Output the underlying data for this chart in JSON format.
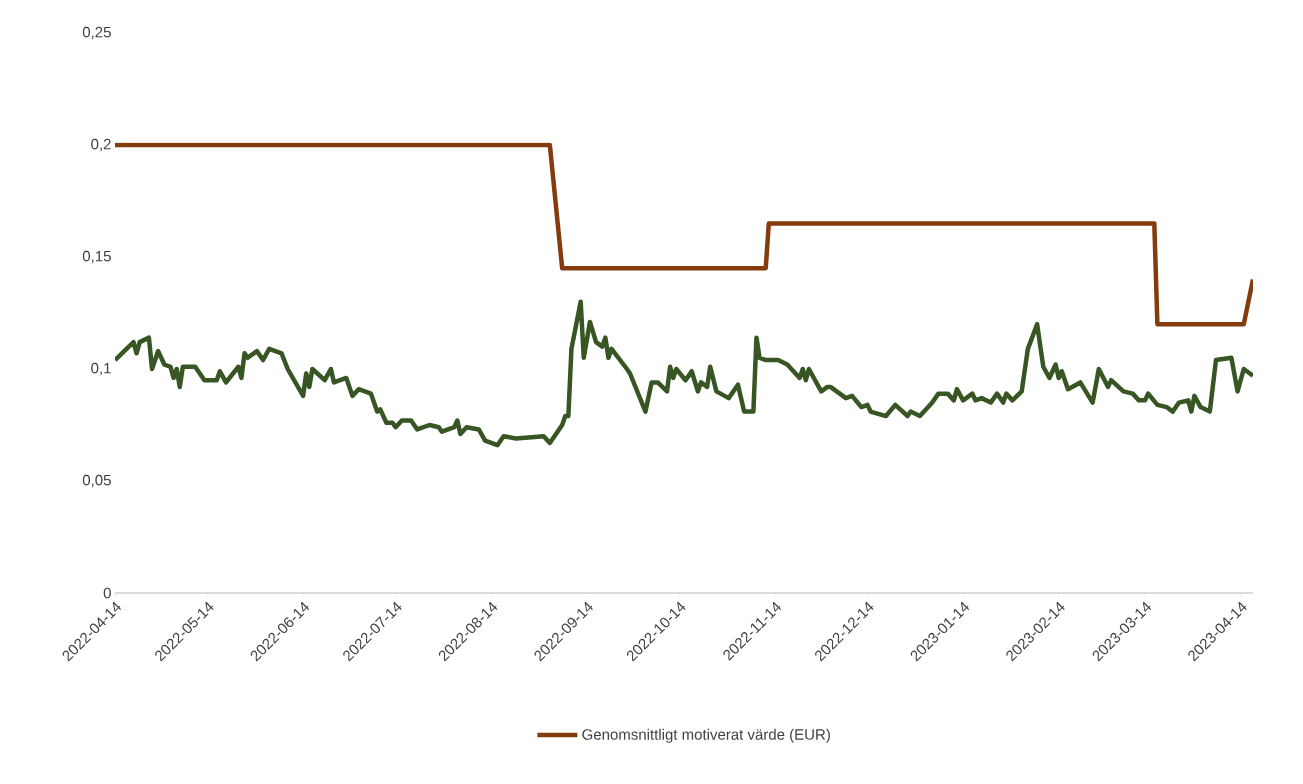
{
  "chart_data": {
    "type": "line",
    "xlim": [
      "2022-04-14",
      "2023-04-18"
    ],
    "ylim": [
      0,
      0.25
    ],
    "xticks": [
      "2022-04-14",
      "2022-05-14",
      "2022-06-14",
      "2022-07-14",
      "2022-08-14",
      "2022-09-14",
      "2022-10-14",
      "2022-11-14",
      "2022-12-14",
      "2023-01-14",
      "2023-02-14",
      "2023-03-14",
      "2023-04-14"
    ],
    "yticks": [
      {
        "value": 0,
        "label": "0"
      },
      {
        "value": 0.05,
        "label": "0,05"
      },
      {
        "value": 0.1,
        "label": "0,1"
      },
      {
        "value": 0.15,
        "label": "0,15"
      },
      {
        "value": 0.2,
        "label": "0,2"
      },
      {
        "value": 0.25,
        "label": "0,25"
      }
    ],
    "grid": false,
    "legend": "bottom",
    "marker": "none",
    "line_style": "solid",
    "series": [
      {
        "color": "#375623",
        "x": [
          "2022-04-14",
          "2022-04-20",
          "2022-04-21",
          "2022-04-22",
          "2022-04-25",
          "2022-04-26",
          "2022-04-28",
          "2022-04-30",
          "2022-05-02",
          "2022-05-03",
          "2022-05-04",
          "2022-05-05",
          "2022-05-06",
          "2022-05-10",
          "2022-05-13",
          "2022-05-17",
          "2022-05-18",
          "2022-05-20",
          "2022-05-24",
          "2022-05-25",
          "2022-05-26",
          "2022-05-27",
          "2022-05-30",
          "2022-06-01",
          "2022-06-03",
          "2022-06-07",
          "2022-06-09",
          "2022-06-14",
          "2022-06-15",
          "2022-06-16",
          "2022-06-17",
          "2022-06-21",
          "2022-06-23",
          "2022-06-24",
          "2022-06-28",
          "2022-06-30",
          "2022-07-02",
          "2022-07-06",
          "2022-07-08",
          "2022-07-09",
          "2022-07-11",
          "2022-07-13",
          "2022-07-14",
          "2022-07-16",
          "2022-07-19",
          "2022-07-21",
          "2022-07-25",
          "2022-07-28",
          "2022-07-29",
          "2022-08-02",
          "2022-08-03",
          "2022-08-04",
          "2022-08-06",
          "2022-08-10",
          "2022-08-12",
          "2022-08-16",
          "2022-08-18",
          "2022-08-22",
          "2022-08-31",
          "2022-09-02",
          "2022-09-06",
          "2022-09-07",
          "2022-09-08",
          "2022-09-09",
          "2022-09-12",
          "2022-09-13",
          "2022-09-15",
          "2022-09-17",
          "2022-09-19",
          "2022-09-20",
          "2022-09-21",
          "2022-09-22",
          "2022-09-27",
          "2022-09-28",
          "2022-10-03",
          "2022-10-05",
          "2022-10-07",
          "2022-10-10",
          "2022-10-11",
          "2022-10-12",
          "2022-10-13",
          "2022-10-16",
          "2022-10-18",
          "2022-10-20",
          "2022-10-21",
          "2022-10-23",
          "2022-10-24",
          "2022-10-26",
          "2022-10-30",
          "2022-11-02",
          "2022-11-04",
          "2022-11-07",
          "2022-11-08",
          "2022-11-09",
          "2022-11-11",
          "2022-11-15",
          "2022-11-18",
          "2022-11-22",
          "2022-11-23",
          "2022-11-24",
          "2022-11-25",
          "2022-11-29",
          "2022-12-01",
          "2022-12-02",
          "2022-12-07",
          "2022-12-09",
          "2022-12-12",
          "2022-12-14",
          "2022-12-15",
          "2022-12-20",
          "2022-12-23",
          "2022-12-27",
          "2022-12-28",
          "2022-12-31",
          "2023-01-04",
          "2023-01-06",
          "2023-01-09",
          "2023-01-11",
          "2023-01-12",
          "2023-01-14",
          "2023-01-17",
          "2023-01-18",
          "2023-01-20",
          "2023-01-23",
          "2023-01-25",
          "2023-01-27",
          "2023-01-28",
          "2023-01-30",
          "2023-02-02",
          "2023-02-04",
          "2023-02-07",
          "2023-02-09",
          "2023-02-11",
          "2023-02-13",
          "2023-02-14",
          "2023-02-15",
          "2023-02-17",
          "2023-02-21",
          "2023-02-25",
          "2023-02-27",
          "2023-03-02",
          "2023-03-03",
          "2023-03-07",
          "2023-03-10",
          "2023-03-12",
          "2023-03-14",
          "2023-03-15",
          "2023-03-18",
          "2023-03-21",
          "2023-03-23",
          "2023-03-25",
          "2023-03-28",
          "2023-03-29",
          "2023-03-30",
          "2023-04-01",
          "2023-04-04",
          "2023-04-06",
          "2023-04-11",
          "2023-04-13",
          "2023-04-15",
          "2023-04-18"
        ],
        "values": [
          0.104,
          0.112,
          0.107,
          0.112,
          0.114,
          0.1,
          0.108,
          0.102,
          0.101,
          0.096,
          0.1,
          0.092,
          0.101,
          0.101,
          0.095,
          0.095,
          0.099,
          0.094,
          0.101,
          0.096,
          0.107,
          0.105,
          0.108,
          0.104,
          0.109,
          0.107,
          0.1,
          0.088,
          0.098,
          0.092,
          0.1,
          0.095,
          0.1,
          0.094,
          0.096,
          0.088,
          0.091,
          0.089,
          0.081,
          0.082,
          0.076,
          0.076,
          0.074,
          0.077,
          0.077,
          0.073,
          0.075,
          0.074,
          0.072,
          0.074,
          0.077,
          0.071,
          0.074,
          0.073,
          0.068,
          0.066,
          0.07,
          0.069,
          0.07,
          0.067,
          0.075,
          0.079,
          0.079,
          0.109,
          0.13,
          0.105,
          0.121,
          0.112,
          0.11,
          0.114,
          0.105,
          0.109,
          0.1,
          0.098,
          0.081,
          0.094,
          0.094,
          0.09,
          0.101,
          0.096,
          0.1,
          0.095,
          0.099,
          0.09,
          0.094,
          0.092,
          0.101,
          0.09,
          0.087,
          0.093,
          0.081,
          0.081,
          0.114,
          0.105,
          0.104,
          0.104,
          0.102,
          0.096,
          0.1,
          0.095,
          0.1,
          0.09,
          0.092,
          0.092,
          0.087,
          0.088,
          0.083,
          0.084,
          0.081,
          0.079,
          0.084,
          0.079,
          0.081,
          0.079,
          0.085,
          0.089,
          0.089,
          0.086,
          0.091,
          0.086,
          0.089,
          0.086,
          0.087,
          0.085,
          0.089,
          0.085,
          0.089,
          0.086,
          0.09,
          0.109,
          0.12,
          0.101,
          0.096,
          0.102,
          0.096,
          0.099,
          0.091,
          0.094,
          0.085,
          0.1,
          0.092,
          0.095,
          0.09,
          0.089,
          0.086,
          0.086,
          0.089,
          0.084,
          0.083,
          0.081,
          0.085,
          0.086,
          0.081,
          0.088,
          0.083,
          0.081,
          0.104,
          0.105,
          0.09,
          0.1,
          0.097
        ]
      },
      {
        "name": "Genomsnittligt motiverat värde (EUR)",
        "color": "#843c0c",
        "x": [
          "2022-04-14",
          "2022-09-02",
          "2022-09-06",
          "2022-11-11",
          "2022-11-12",
          "2023-03-17",
          "2023-03-18",
          "2023-04-15",
          "2023-04-18"
        ],
        "values": [
          0.2,
          0.2,
          0.145,
          0.145,
          0.165,
          0.165,
          0.12,
          0.12,
          0.14
        ]
      }
    ]
  }
}
